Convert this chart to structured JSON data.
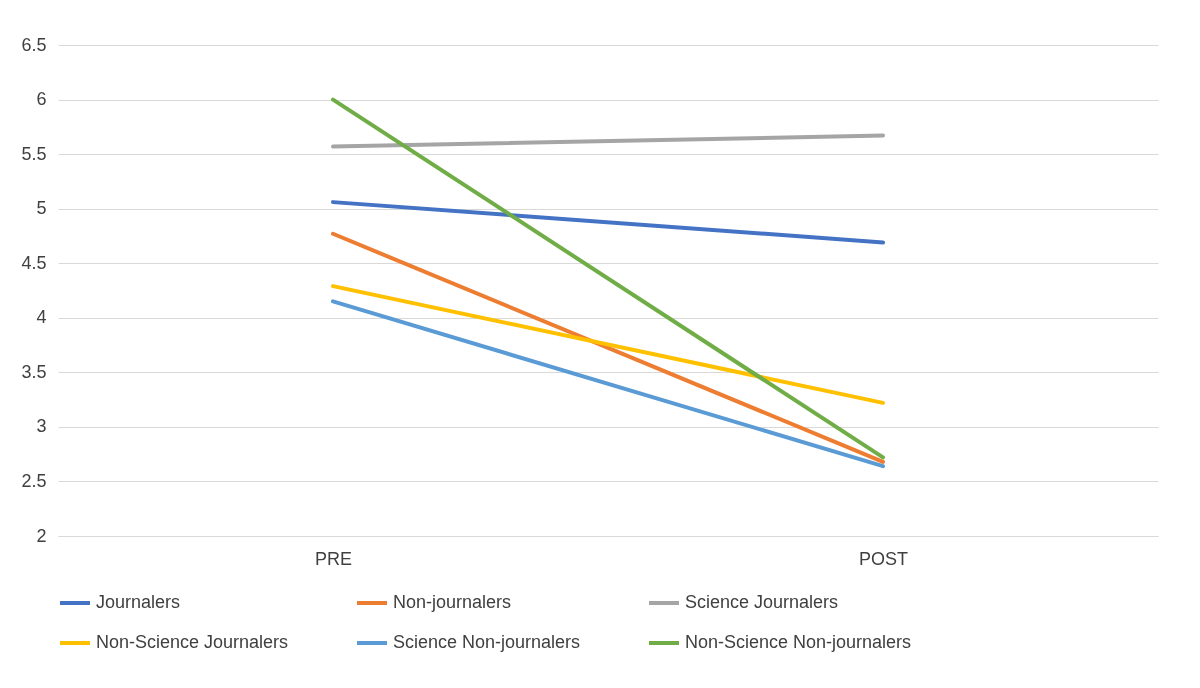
{
  "chart_data": {
    "type": "line",
    "categories": [
      "PRE",
      "POST"
    ],
    "series": [
      {
        "name": "Journalers",
        "color": "#4472c4",
        "values": [
          5.06,
          4.69
        ]
      },
      {
        "name": "Non-journalers",
        "color": "#ed7d31",
        "values": [
          4.77,
          2.68
        ]
      },
      {
        "name": "Science Journalers",
        "color": "#a5a5a5",
        "values": [
          5.57,
          5.67
        ]
      },
      {
        "name": "Non-Science Journalers",
        "color": "#ffc000",
        "values": [
          4.29,
          3.22
        ]
      },
      {
        "name": "Science Non-journalers",
        "color": "#5b9bd5",
        "values": [
          4.15,
          2.64
        ]
      },
      {
        "name": "Non-Science Non-journalers",
        "color": "#70ad47",
        "values": [
          6.0,
          2.72
        ]
      }
    ],
    "ylim": [
      2,
      6.5
    ],
    "yticks": [
      2,
      2.5,
      3,
      3.5,
      4,
      4.5,
      5,
      5.5,
      6,
      6.5
    ],
    "grid": "y",
    "legend": "bottom"
  }
}
